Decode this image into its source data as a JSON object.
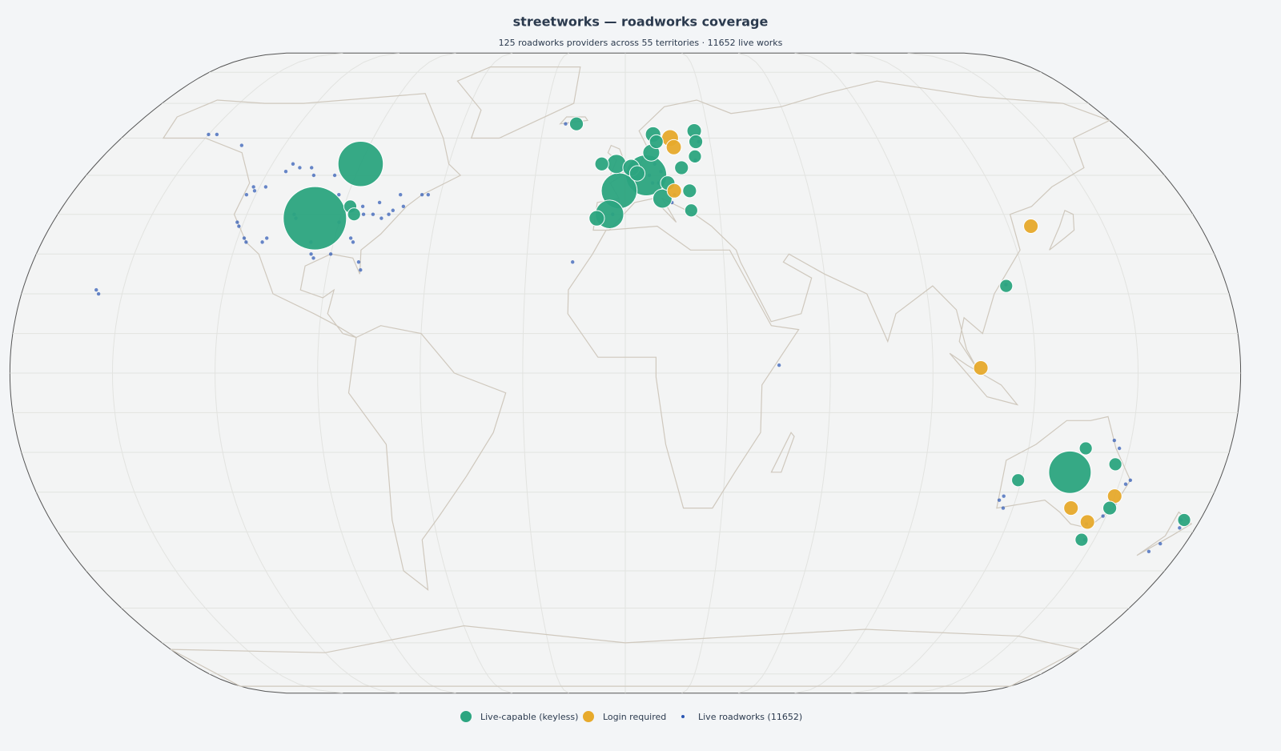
{
  "title": "streetworks — roadworks coverage",
  "subtitle": "125 roadworks providers across 55 territories · 11652 live works",
  "legend": [
    {
      "label": "Live-capable (keyless)",
      "color": "#2ca580"
    },
    {
      "label": "Login required",
      "color": "#e7aa2c"
    },
    {
      "label": "Live roadworks (11652)",
      "color": "#2a56b3"
    }
  ],
  "providers": [
    {
      "lon": -98,
      "lat": 39,
      "status": "live",
      "works": 600
    },
    {
      "lon": -90,
      "lat": 53,
      "status": "live",
      "works": 280
    },
    {
      "lon": -88,
      "lat": 42,
      "status": "live",
      "works": 8
    },
    {
      "lon": -86,
      "lat": 40,
      "status": "live",
      "works": 8
    },
    {
      "lon": -18,
      "lat": 64,
      "status": "live",
      "works": 10
    },
    {
      "lon": 7,
      "lat": 50,
      "status": "live",
      "works": 220
    },
    {
      "lon": -2,
      "lat": 46,
      "status": "live",
      "works": 160
    },
    {
      "lon": -5,
      "lat": 40,
      "status": "live",
      "works": 90
    },
    {
      "lon": -9,
      "lat": 39,
      "status": "live",
      "works": 15
    },
    {
      "lon": -3,
      "lat": 53,
      "status": "live",
      "works": 30
    },
    {
      "lon": -8,
      "lat": 53,
      "status": "live",
      "works": 10
    },
    {
      "lon": 2,
      "lat": 52,
      "status": "live",
      "works": 20
    },
    {
      "lon": 4,
      "lat": 50.5,
      "status": "live",
      "works": 15
    },
    {
      "lon": 9,
      "lat": 56,
      "status": "live",
      "works": 20
    },
    {
      "lon": 10,
      "lat": 61,
      "status": "live",
      "works": 15
    },
    {
      "lon": 11,
      "lat": 59,
      "status": "live",
      "works": 10
    },
    {
      "lon": 25,
      "lat": 62,
      "status": "live",
      "works": 12
    },
    {
      "lon": 25,
      "lat": 59,
      "status": "live",
      "works": 10
    },
    {
      "lon": 24,
      "lat": 55,
      "status": "live",
      "works": 8
    },
    {
      "lon": 19,
      "lat": 52,
      "status": "live",
      "works": 10
    },
    {
      "lon": 14,
      "lat": 48,
      "status": "live",
      "works": 12
    },
    {
      "lon": 12,
      "lat": 44,
      "status": "live",
      "works": 30
    },
    {
      "lon": 21,
      "lat": 46,
      "status": "live",
      "works": 10
    },
    {
      "lon": 21,
      "lat": 41,
      "status": "live",
      "works": 8
    },
    {
      "lon": 114,
      "lat": 22,
      "status": "live",
      "works": 8
    },
    {
      "lon": 134,
      "lat": -25,
      "status": "live",
      "works": 240
    },
    {
      "lon": 119,
      "lat": -27,
      "status": "live",
      "works": 8
    },
    {
      "lon": 147,
      "lat": -23,
      "status": "live",
      "works": 8
    },
    {
      "lon": 137,
      "lat": -19,
      "status": "live",
      "works": 8
    },
    {
      "lon": 150,
      "lat": -34,
      "status": "live",
      "works": 10
    },
    {
      "lon": 146,
      "lat": -42,
      "status": "live",
      "works": 8
    },
    {
      "lon": 175,
      "lat": -37,
      "status": "live",
      "works": 8
    },
    {
      "lon": 16,
      "lat": 60,
      "status": "login",
      "works": 20
    },
    {
      "lon": 17,
      "lat": 57.5,
      "status": "login",
      "works": 14
    },
    {
      "lon": 16,
      "lat": 46,
      "status": "login",
      "works": 12
    },
    {
      "lon": 127,
      "lat": 37,
      "status": "login",
      "works": 12
    },
    {
      "lon": 104,
      "lat": 1.3,
      "status": "login",
      "works": 12
    },
    {
      "lon": 138,
      "lat": -34,
      "status": "login",
      "works": 12
    },
    {
      "lon": 150,
      "lat": -31,
      "status": "login",
      "works": 12
    },
    {
      "lon": 145,
      "lat": -37.5,
      "status": "login",
      "works": 12
    }
  ],
  "roadworks": [
    [
      -122,
      47
    ],
    [
      -123,
      45
    ],
    [
      -121,
      46
    ],
    [
      -118,
      47
    ],
    [
      -114,
      51
    ],
    [
      -113,
      53
    ],
    [
      -110,
      52
    ],
    [
      -106,
      52
    ],
    [
      -104,
      50
    ],
    [
      -97,
      50
    ],
    [
      -122,
      38
    ],
    [
      -121,
      37
    ],
    [
      -118,
      34
    ],
    [
      -117,
      33
    ],
    [
      -112,
      33
    ],
    [
      -111,
      34
    ],
    [
      -105,
      40
    ],
    [
      -104,
      39
    ],
    [
      -97,
      33
    ],
    [
      -96,
      30
    ],
    [
      -95,
      29
    ],
    [
      -93,
      45
    ],
    [
      -90,
      38
    ],
    [
      -87,
      41
    ],
    [
      -84,
      42
    ],
    [
      -83,
      40
    ],
    [
      -80,
      40
    ],
    [
      -79,
      43
    ],
    [
      -77,
      39
    ],
    [
      -75,
      40
    ],
    [
      -74,
      41
    ],
    [
      -73,
      45
    ],
    [
      -71,
      42
    ],
    [
      -66,
      45
    ],
    [
      -64,
      45
    ],
    [
      -85,
      34
    ],
    [
      -84,
      33
    ],
    [
      -81,
      28
    ],
    [
      -80,
      26
    ],
    [
      -90,
      30
    ],
    [
      -135,
      58
    ],
    [
      -147,
      61
    ],
    [
      -150,
      61
    ],
    [
      -158,
      21
    ],
    [
      -157,
      20
    ],
    [
      -16,
      28
    ],
    [
      -22,
      64
    ],
    [
      -1,
      52
    ],
    [
      0,
      51
    ],
    [
      2,
      49
    ],
    [
      4,
      52
    ],
    [
      6,
      51
    ],
    [
      8,
      50
    ],
    [
      10,
      53
    ],
    [
      12,
      51
    ],
    [
      9,
      48
    ],
    [
      11,
      48
    ],
    [
      -3,
      43
    ],
    [
      -4,
      40
    ],
    [
      -8,
      40
    ],
    [
      18,
      59
    ],
    [
      24,
      60
    ],
    [
      26,
      59
    ],
    [
      16,
      45
    ],
    [
      15,
      43
    ],
    [
      24,
      54
    ],
    [
      45,
      2
    ],
    [
      114,
      22.3
    ],
    [
      115,
      -32
    ],
    [
      116,
      -31
    ],
    [
      117,
      -34
    ],
    [
      145,
      -17
    ],
    [
      147,
      -19
    ],
    [
      152,
      -28
    ],
    [
      153,
      -27
    ],
    [
      151,
      -33
    ],
    [
      149,
      -36
    ],
    [
      145,
      -38
    ],
    [
      147,
      -42
    ],
    [
      174,
      -37
    ],
    [
      175,
      -39
    ],
    [
      172,
      -43
    ],
    [
      170,
      -45
    ]
  ]
}
